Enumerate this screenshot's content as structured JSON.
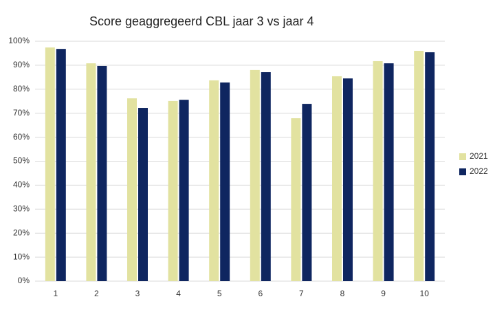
{
  "chart_data": {
    "type": "bar",
    "title": "Score geaggregeerd CBL jaar 3 vs jaar 4",
    "categories": [
      "1",
      "2",
      "3",
      "4",
      "5",
      "6",
      "7",
      "8",
      "9",
      "10"
    ],
    "series": [
      {
        "name": "2021",
        "color": "#e2e2a0",
        "values": [
          97.4,
          90.8,
          76.2,
          75.1,
          83.7,
          88.0,
          67.9,
          85.4,
          91.7,
          96.0
        ]
      },
      {
        "name": "2022",
        "color": "#0f2660",
        "values": [
          96.8,
          89.7,
          72.2,
          75.6,
          82.8,
          87.1,
          73.9,
          84.5,
          90.8,
          95.4
        ]
      }
    ],
    "ylim": [
      0,
      100
    ],
    "yticks": [
      {
        "value": 0,
        "label": "0%"
      },
      {
        "value": 10,
        "label": "10%"
      },
      {
        "value": 20,
        "label": "20%"
      },
      {
        "value": 30,
        "label": "30%"
      },
      {
        "value": 40,
        "label": "40%"
      },
      {
        "value": 50,
        "label": "50%"
      },
      {
        "value": 60,
        "label": "60%"
      },
      {
        "value": 70,
        "label": "70%"
      },
      {
        "value": 80,
        "label": "80%"
      },
      {
        "value": 90,
        "label": "90%"
      },
      {
        "value": 100,
        "label": "100%"
      }
    ],
    "grid": true,
    "legend": "right"
  }
}
